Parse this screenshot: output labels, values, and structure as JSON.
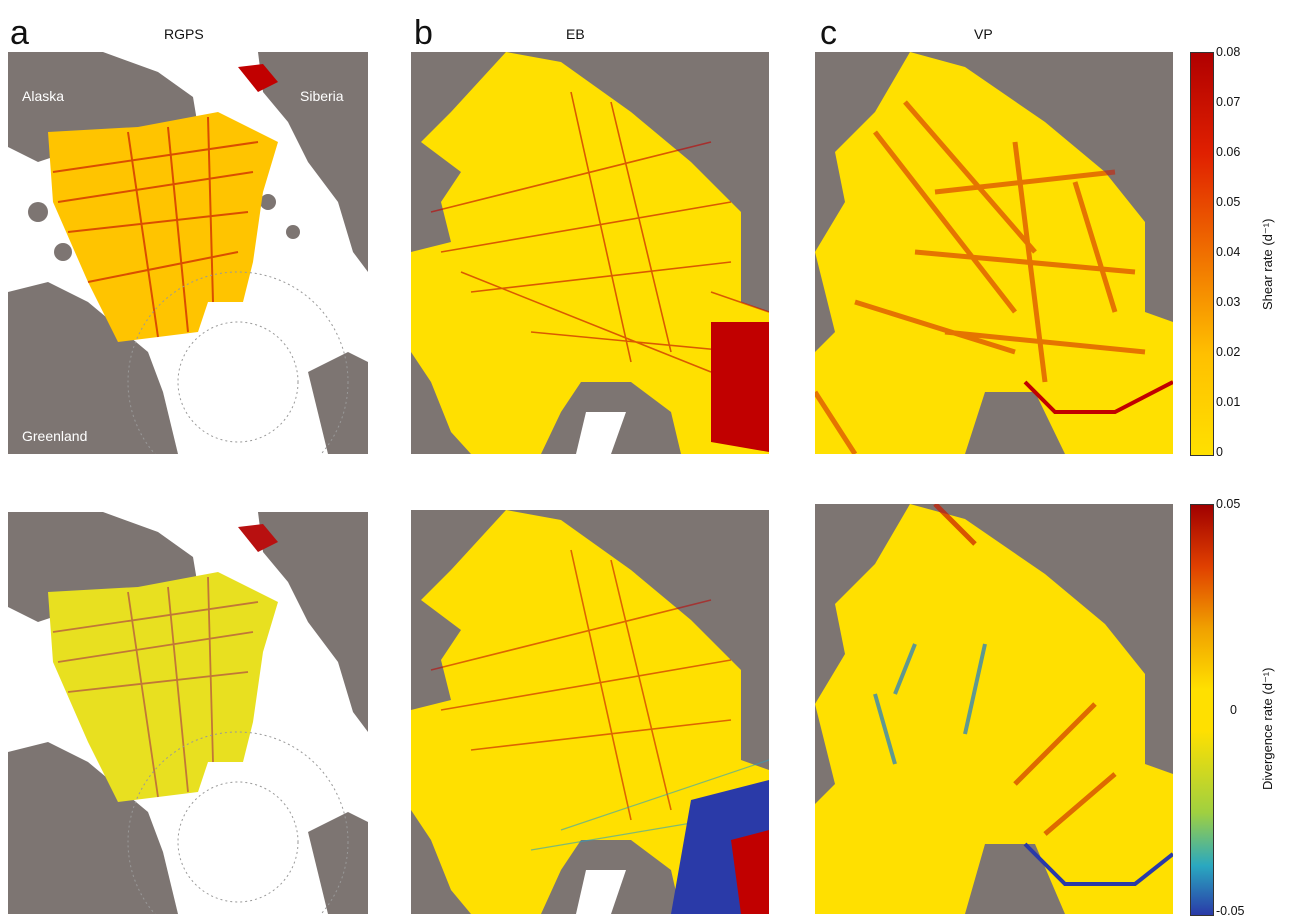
{
  "panels": [
    {
      "letter": "a",
      "title": "RGPS"
    },
    {
      "letter": "b",
      "title": "EB"
    },
    {
      "letter": "c",
      "title": "VP"
    }
  ],
  "map_labels": {
    "alaska": "Alaska",
    "siberia": "Siberia",
    "greenland": "Greenland"
  },
  "colorbars": {
    "shear": {
      "label": "Shear rate (d⁻¹)",
      "ticks": [
        "0.08",
        "0.07",
        "0.06",
        "0.05",
        "0.04",
        "0.03",
        "0.02",
        "0.01",
        "0"
      ]
    },
    "divergence": {
      "label": "Divergence rate (d⁻¹)",
      "ticks": [
        "0.05",
        "0",
        "-0.05"
      ]
    }
  },
  "colors": {
    "land": "#7d7572",
    "ocean": "#ffffff",
    "ice": "#ffe000",
    "high_shear": "#c10000",
    "convergence": "#2a3aa8"
  }
}
